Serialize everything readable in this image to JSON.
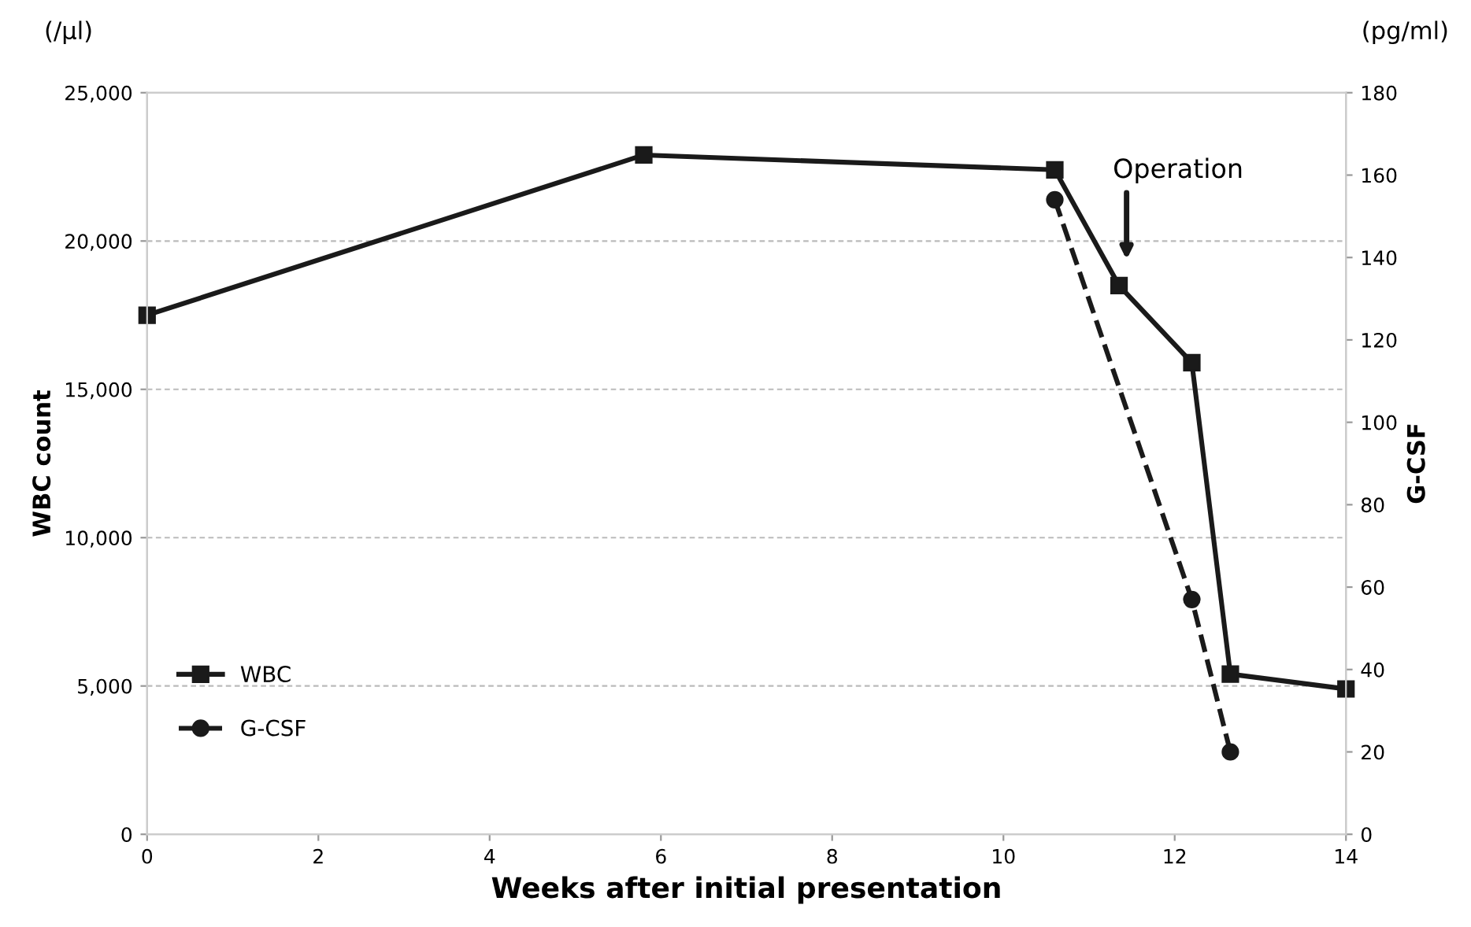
{
  "chart_data": {
    "type": "line",
    "xlabel": "Weeks after initial presentation",
    "ylabel": "WBC count",
    "y2label": "G-CSF",
    "xlim": [
      0,
      14
    ],
    "xticks": [
      0,
      2,
      4,
      6,
      8,
      10,
      12,
      14
    ],
    "ylim": [
      0,
      25000
    ],
    "yticks": [
      {
        "value": 0,
        "label": "0"
      },
      {
        "value": 5000,
        "label": "5,000"
      },
      {
        "value": 10000,
        "label": "10,000"
      },
      {
        "value": 15000,
        "label": "15,000"
      },
      {
        "value": 20000,
        "label": "20,000"
      },
      {
        "value": 25000,
        "label": "25,000"
      }
    ],
    "y2lim": [
      0,
      180
    ],
    "y2ticks": [
      0,
      20,
      40,
      60,
      80,
      100,
      120,
      140,
      160,
      180
    ],
    "grid": "y",
    "legend": "bottom left",
    "series": [
      {
        "name": "WBC",
        "color": "#1a1a1a",
        "marker": "square",
        "line_style": "solid",
        "x": [
          0,
          5.8,
          10.6,
          11.35,
          12.2,
          12.65,
          14
        ],
        "values": [
          17500,
          22900,
          22400,
          18500,
          15900,
          5400,
          4900
        ]
      },
      {
        "name": "G-CSF",
        "color": "#1a1a1a",
        "marker": "circle",
        "line_style": "dashed",
        "axis": "y2",
        "x": [
          10.6,
          12.2,
          12.65
        ],
        "values": [
          154,
          57,
          20
        ]
      }
    ],
    "annotations": [
      "Operation",
      "(/µl)",
      "(pg/ml)"
    ]
  }
}
